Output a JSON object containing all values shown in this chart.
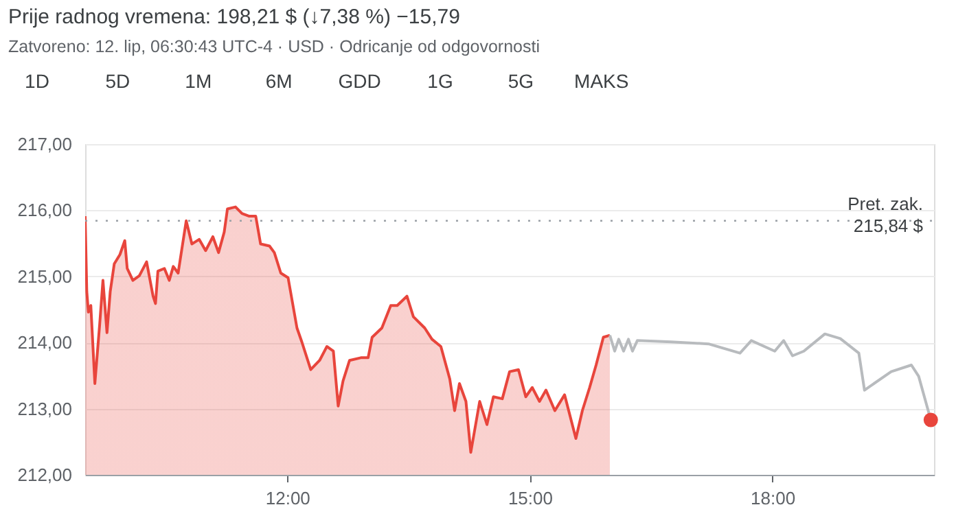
{
  "chart_data": {
    "type": "area",
    "title": "Prije radnog vremena:  198,21 $  (↓7,38 %)  −15,79",
    "subtitle": "Zatvoreno: 12. lip, 06:30:43 UTC-4 · USD · Odricanje od odgovornosti",
    "annotations": [
      "1D",
      "5D",
      "1M",
      "6M",
      "GDD",
      "1G",
      "5G",
      "MAKS"
    ],
    "xlim": [
      9.5,
      20
    ],
    "xticks": [
      {
        "value": 12,
        "label": "12:00"
      },
      {
        "value": 15,
        "label": "15:00"
      },
      {
        "value": 18,
        "label": "18:00"
      }
    ],
    "ylim": [
      212,
      217
    ],
    "yticks": [
      {
        "value": 212,
        "label": "212,00"
      },
      {
        "value": 213,
        "label": "213,00"
      },
      {
        "value": 214,
        "label": "214,00"
      },
      {
        "value": 215,
        "label": "215,00"
      },
      {
        "value": 216,
        "label": "216,00"
      },
      {
        "value": 217,
        "label": "217,00"
      }
    ],
    "grid": "y",
    "ref_lines": [
      {
        "axis": "y",
        "value": 215.84,
        "label": "Pret. zak.\n215,84 $",
        "color": "#9aa0a6",
        "line_style": "dotted"
      }
    ],
    "series": [
      {
        "color": "#e8453c",
        "x": [
          9.5,
          9.52,
          9.54,
          9.57,
          9.62,
          9.68,
          9.72,
          9.77,
          9.81,
          9.86,
          9.93,
          9.99,
          10.02,
          10.09,
          10.17,
          10.26,
          10.34,
          10.37,
          10.4,
          10.48,
          10.54,
          10.59,
          10.65,
          10.75,
          10.82,
          10.91,
          10.99,
          11.08,
          11.15,
          11.22,
          11.26,
          11.36,
          11.44,
          11.53,
          11.61,
          11.67,
          11.78,
          11.84,
          11.92,
          12.01,
          12.12,
          12.18,
          12.29,
          12.4,
          12.49,
          12.57,
          12.63,
          12.69,
          12.77,
          12.91,
          13.0,
          13.05,
          13.17,
          13.28,
          13.36,
          13.48,
          13.56,
          13.7,
          13.79,
          13.9,
          14.01,
          14.07,
          14.13,
          14.21,
          14.27,
          14.35,
          14.38,
          14.47,
          14.55,
          14.66,
          14.75,
          14.86,
          14.95,
          15.03,
          15.12,
          15.2,
          15.31,
          15.43,
          15.57,
          15.65,
          15.74,
          15.82,
          15.91,
          15.99
        ],
        "values": [
          215.91,
          214.77,
          214.46,
          214.56,
          213.38,
          214.28,
          214.94,
          214.15,
          214.77,
          215.19,
          215.33,
          215.54,
          215.12,
          214.94,
          215.01,
          215.22,
          214.7,
          214.59,
          215.08,
          215.12,
          214.94,
          215.15,
          215.05,
          215.84,
          215.49,
          215.56,
          215.39,
          215.6,
          215.36,
          215.67,
          216.02,
          216.05,
          215.95,
          215.91,
          215.91,
          215.49,
          215.46,
          215.36,
          215.05,
          214.98,
          214.22,
          214.01,
          213.59,
          213.73,
          213.94,
          213.87,
          213.04,
          213.42,
          213.73,
          213.77,
          213.77,
          214.08,
          214.22,
          214.56,
          214.56,
          214.7,
          214.39,
          214.22,
          214.05,
          213.94,
          213.45,
          212.97,
          213.38,
          213.11,
          212.34,
          212.9,
          213.11,
          212.76,
          213.18,
          213.15,
          213.56,
          213.59,
          213.18,
          213.32,
          213.11,
          213.28,
          212.97,
          213.21,
          212.55,
          212.97,
          213.32,
          213.66,
          214.08,
          214.11
        ]
      },
      {
        "type": "line",
        "color": "#b8bbbe",
        "x": [
          15.99,
          16.05,
          16.1,
          16.16,
          16.22,
          16.27,
          16.33,
          16.75,
          17.21,
          17.6,
          17.74,
          18.03,
          18.14,
          18.25,
          18.39,
          18.65,
          18.84,
          19.07,
          19.14,
          19.47,
          19.72,
          19.81,
          19.96
        ],
        "values": [
          214.11,
          213.87,
          214.05,
          213.87,
          214.05,
          213.87,
          214.03,
          214.01,
          213.98,
          213.84,
          214.03,
          213.87,
          214.03,
          213.8,
          213.87,
          214.13,
          214.06,
          213.84,
          213.28,
          213.56,
          213.66,
          213.49,
          212.83
        ]
      },
      {
        "type": "scatter",
        "color": "#e8453c",
        "marker": "circle",
        "x": [
          19.96
        ],
        "values": [
          212.83
        ]
      }
    ]
  }
}
